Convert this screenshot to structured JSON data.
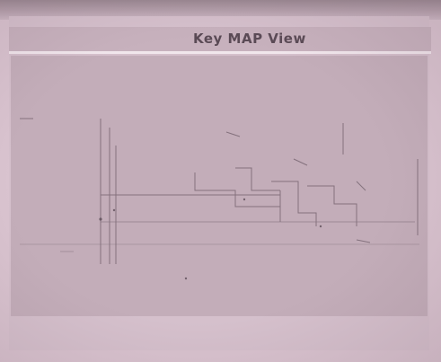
{
  "document": {
    "title": "Key MAP View"
  },
  "colors": {
    "paper": "#d5c0cc",
    "ink": "#5a4a55",
    "map_background": "#c3adb9"
  }
}
